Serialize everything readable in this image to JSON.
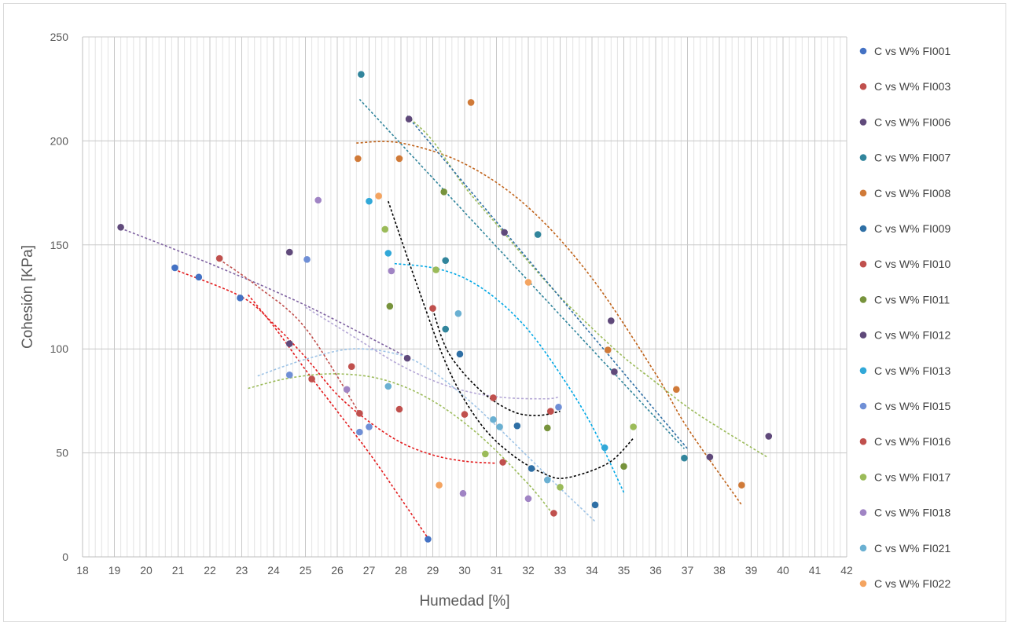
{
  "chart_data": {
    "type": "scatter",
    "title": "",
    "xlabel": "Humedad [%]",
    "ylabel": "Cohesión [KPa]",
    "xlim": [
      18,
      42
    ],
    "ylim": [
      0,
      250
    ],
    "x_major_ticks": [
      18,
      19,
      20,
      21,
      22,
      23,
      24,
      25,
      26,
      27,
      28,
      29,
      30,
      31,
      32,
      33,
      34,
      35,
      36,
      37,
      38,
      39,
      40,
      41,
      42
    ],
    "y_major_ticks": [
      0,
      50,
      100,
      150,
      200,
      250
    ],
    "x_minor_step": 0.2,
    "grid": true,
    "legend_position": "right",
    "series": [
      {
        "name": "C vs W% FI001",
        "color": "#4472c4",
        "points": [
          [
            20.9,
            139
          ],
          [
            21.65,
            134.5
          ],
          [
            22.95,
            124.5
          ],
          [
            28.85,
            8.5
          ]
        ],
        "trend": {
          "color": "#4472c4",
          "x": [
            28.8,
            28.8
          ],
          "y": [
            8.5,
            8.5
          ]
        }
      },
      {
        "name": "C vs W% FI003",
        "color": "#c0504d",
        "points": [
          [
            22.3,
            143.5
          ],
          [
            25.2,
            85.5
          ],
          [
            26.7,
            69
          ],
          [
            27.95,
            71
          ],
          [
            31.2,
            45.5
          ],
          [
            32.8,
            21
          ]
        ],
        "trend": {
          "color": "#e31a1c",
          "x": [
            21,
            23,
            24,
            25,
            26,
            27,
            28,
            29,
            30,
            31
          ],
          "y": [
            137.5,
            125,
            112,
            96,
            78,
            65,
            55,
            49,
            46,
            45
          ]
        }
      },
      {
        "name": "C vs W% FI006",
        "color": "#604a7b",
        "points": [
          [
            19.2,
            158.5
          ],
          [
            24.5,
            146.5
          ],
          [
            24.5,
            102.5
          ],
          [
            28.2,
            95.5
          ]
        ],
        "trend": {
          "color": "#8064a2",
          "x": [
            19.2,
            22,
            25,
            28.2
          ],
          "y": [
            158,
            141,
            121,
            96
          ]
        }
      },
      {
        "name": "C vs W% FI007",
        "color": "#31859c",
        "points": [
          [
            26.75,
            232
          ],
          [
            29.4,
            142.5
          ],
          [
            29.4,
            109.5
          ],
          [
            32.3,
            155
          ],
          [
            36.9,
            47.5
          ]
        ],
        "trend": {
          "color": "#31859c",
          "x": [
            26.7,
            36.9
          ],
          "y": [
            220,
            52
          ]
        }
      },
      {
        "name": "C vs W% FI008",
        "color": "#d07a38",
        "points": [
          [
            26.65,
            191.5
          ],
          [
            27.95,
            191.5
          ],
          [
            30.2,
            218.5
          ],
          [
            34.5,
            99.5
          ],
          [
            36.65,
            80.5
          ],
          [
            38.7,
            34.5
          ]
        ],
        "trend": {
          "color": "#c0631a",
          "x": [
            26.6,
            28,
            30,
            32,
            34,
            36,
            37,
            38.7
          ],
          "y": [
            199,
            199,
            189,
            168,
            134,
            88,
            62,
            25
          ]
        }
      },
      {
        "name": "C vs W% FI009",
        "color": "#2e6fa5",
        "points": [
          [
            29.85,
            97.5
          ],
          [
            31.65,
            63
          ],
          [
            32.1,
            42.5
          ],
          [
            34.1,
            25
          ]
        ],
        "trend": {
          "color": "#2e6fa5",
          "x": [
            29.8,
            29.8
          ],
          "y": [
            97.5,
            97.5
          ]
        }
      },
      {
        "name": "C vs W% FI010",
        "color": "#c0504d",
        "points": [
          [
            26.45,
            91.5
          ],
          [
            30.0,
            68.5
          ],
          [
            32.7,
            70
          ]
        ],
        "trend": {
          "color": "#e31a1c",
          "x": [
            23.2,
            24,
            25,
            26,
            27,
            28,
            28.85
          ],
          "y": [
            126,
            111,
            90,
            70,
            50,
            28,
            9
          ]
        }
      },
      {
        "name": "C vs W% FI011",
        "color": "#77933c",
        "points": [
          [
            27.65,
            120.5
          ],
          [
            29.35,
            175.5
          ],
          [
            32.6,
            62
          ],
          [
            35.0,
            43.5
          ]
        ],
        "trend": {
          "color": "#9bbb59",
          "x": [
            28.2,
            29,
            30,
            31,
            32,
            33,
            34,
            35,
            36,
            37,
            38,
            39.5
          ],
          "y": [
            212,
            200,
            178,
            160,
            142,
            125,
            110,
            96,
            84,
            72,
            62,
            48
          ]
        }
      },
      {
        "name": "C vs W% FI012",
        "color": "#5f497a",
        "points": [
          [
            28.25,
            210.5
          ],
          [
            31.25,
            156
          ],
          [
            34.6,
            113.5
          ],
          [
            34.7,
            89
          ],
          [
            37.7,
            48
          ],
          [
            39.55,
            58
          ]
        ],
        "trend": {
          "color": "#2e6fa5",
          "x": [
            28.2,
            37
          ],
          "y": [
            212,
            52
          ]
        }
      },
      {
        "name": "C vs W% FI013",
        "color": "#31a8d8",
        "points": [
          [
            27.0,
            171
          ],
          [
            27.6,
            146
          ],
          [
            34.4,
            52.5
          ]
        ],
        "trend": {
          "color": "#00a8e6",
          "x": [
            27.8,
            29,
            30,
            31,
            32,
            33,
            34,
            35
          ],
          "y": [
            141,
            139,
            134,
            124,
            109,
            88,
            63,
            31
          ]
        }
      },
      {
        "name": "C vs W% FI015",
        "color": "#6f8fd6",
        "points": [
          [
            24.5,
            87.5
          ],
          [
            25.05,
            143
          ],
          [
            26.7,
            60
          ],
          [
            27.0,
            62.5
          ],
          [
            32.95,
            72
          ]
        ],
        "trend": {
          "color": "#9dc3e6",
          "x": [
            23.5,
            25,
            26.5,
            28,
            29,
            30,
            31,
            32,
            33,
            34.1
          ],
          "y": [
            87,
            95,
            100,
            97,
            89,
            77,
            63,
            48,
            33,
            17
          ]
        }
      },
      {
        "name": "C vs W% FI016",
        "color": "#c0504d",
        "points": [
          [
            29.0,
            119.5
          ],
          [
            30.9,
            76.5
          ],
          [
            32.7,
            70
          ]
        ],
        "trend": {
          "color": "#c0504d",
          "x": [
            22.3,
            23.5,
            25,
            26.7
          ],
          "y": [
            143,
            130,
            110,
            69
          ]
        }
      },
      {
        "name": "C vs W% FI017",
        "color": "#9bbb59",
        "points": [
          [
            27.5,
            157.5
          ],
          [
            29.1,
            138
          ],
          [
            30.65,
            49.5
          ],
          [
            33.0,
            33.5
          ],
          [
            35.3,
            62.5
          ]
        ],
        "trend": {
          "color": "#9bbb59",
          "x": [
            23.2,
            24.5,
            26,
            27.5,
            29,
            30.5,
            32,
            32.8
          ],
          "y": [
            81,
            86,
            88,
            85,
            75,
            58,
            35,
            20
          ]
        }
      },
      {
        "name": "C vs W% FI018",
        "color": "#a084c4",
        "points": [
          [
            25.4,
            171.5
          ],
          [
            26.3,
            80.5
          ],
          [
            27.7,
            137.5
          ],
          [
            29.95,
            30.5
          ],
          [
            32.0,
            28
          ]
        ],
        "trend": {
          "color": "#b4a7d6",
          "x": [
            25,
            26.5,
            28,
            29.5,
            31,
            32.5,
            33
          ],
          "y": [
            120,
            106,
            92,
            82,
            77,
            76,
            77
          ]
        }
      },
      {
        "name": "C vs W% FI021",
        "color": "#6ab0d2",
        "points": [
          [
            27.6,
            82
          ],
          [
            29.8,
            117
          ],
          [
            30.9,
            66
          ],
          [
            31.1,
            62.5
          ],
          [
            32.6,
            37
          ]
        ],
        "trend": {
          "color": "#000000",
          "x": [
            27.6,
            28.5,
            29.5,
            30.5,
            31.5,
            32.5,
            33.2,
            34.5,
            35.3
          ],
          "y": [
            171,
            131,
            90,
            64,
            49,
            40,
            38,
            45,
            57
          ]
        }
      },
      {
        "name": "C vs W% FI022",
        "color": "#f4a460",
        "points": [
          [
            27.3,
            173.5
          ],
          [
            29.2,
            34.5
          ],
          [
            32.0,
            132
          ]
        ],
        "trend": {
          "color": "#000000",
          "x": [
            29.0,
            29.5,
            30.5,
            31.5,
            32.3,
            33.0
          ],
          "y": [
            119,
            98,
            80,
            70,
            68,
            70
          ]
        }
      }
    ]
  }
}
